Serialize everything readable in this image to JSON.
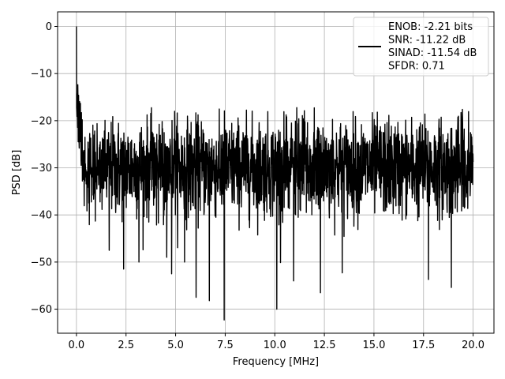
{
  "chart_data": {
    "type": "line",
    "title": "",
    "xlabel": "Frequency [MHz]",
    "ylabel": "PSD [dB]",
    "xlim": [
      -0.95,
      21.05
    ],
    "ylim": [
      -65.1,
      3.1
    ],
    "xticks": [
      0.0,
      2.5,
      5.0,
      7.5,
      10.0,
      12.5,
      15.0,
      17.5,
      20.0
    ],
    "xtick_labels": [
      "0.0",
      "2.5",
      "5.0",
      "7.5",
      "10.0",
      "12.5",
      "15.0",
      "17.5",
      "20.0"
    ],
    "yticks": [
      0,
      -10,
      -20,
      -30,
      -40,
      -50,
      -60
    ],
    "ytick_labels": [
      "0",
      "−10",
      "−20",
      "−30",
      "−40",
      "−50",
      "−60"
    ],
    "grid": true,
    "legend_position": "upper right",
    "series": [
      {
        "color": "#000000",
        "x_range": [
          0,
          20
        ],
        "peak": {
          "x": 0.0,
          "y": 0
        },
        "noise_floor_approx": -30,
        "upper_envelope_approx": -20,
        "lower_envelope_approx": -40,
        "notable_dips": [
          {
            "x": 1.65,
            "y": -47.5
          },
          {
            "x": 2.38,
            "y": -51.5
          },
          {
            "x": 3.15,
            "y": -50
          },
          {
            "x": 4.55,
            "y": -49
          },
          {
            "x": 4.8,
            "y": -52.5
          },
          {
            "x": 5.45,
            "y": -50
          },
          {
            "x": 6.03,
            "y": -57.5
          },
          {
            "x": 6.7,
            "y": -58.2
          },
          {
            "x": 7.45,
            "y": -62.3
          },
          {
            "x": 10.1,
            "y": -60
          },
          {
            "x": 10.95,
            "y": -54
          },
          {
            "x": 12.3,
            "y": -56.5
          },
          {
            "x": 13.4,
            "y": -52.3
          },
          {
            "x": 17.75,
            "y": -53.7
          },
          {
            "x": 18.9,
            "y": -55.4
          }
        ]
      }
    ],
    "legend": {
      "lines": [
        "ENOB: -2.21 bits",
        "SNR: -11.22 dB",
        "SINAD: -11.54 dB",
        "SFDR: 0.71"
      ]
    }
  }
}
